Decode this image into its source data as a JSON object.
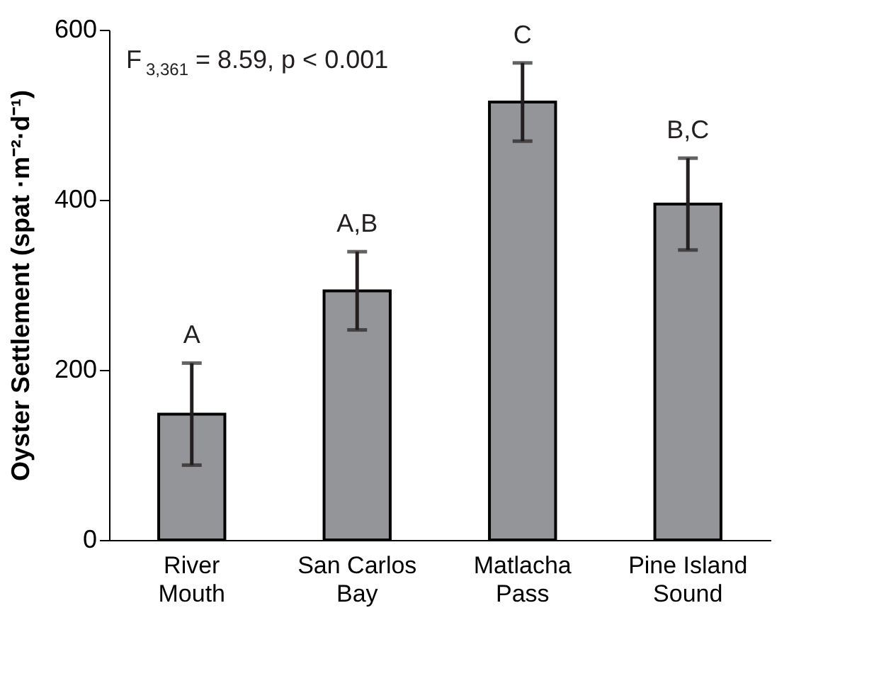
{
  "chart_data": {
    "type": "bar",
    "ylabel": "Oyster Settlement (spat ·m⁻²·d⁻¹)",
    "categories": [
      "River Mouth",
      "San Carlos Bay",
      "Matlacha Pass",
      "Pine Island Sound"
    ],
    "values": [
      148,
      293,
      515,
      395
    ],
    "errors": [
      60,
      46,
      46,
      54
    ],
    "color": "#939598",
    "value_labels": [
      "A",
      "A,B",
      "C",
      "B,C"
    ],
    "ylim": [
      0,
      600
    ],
    "yticks": [
      0,
      200,
      400,
      600
    ],
    "grid": false,
    "annotations": [
      "F$_{3,361}$ = 8.59, p < 0.001"
    ]
  }
}
